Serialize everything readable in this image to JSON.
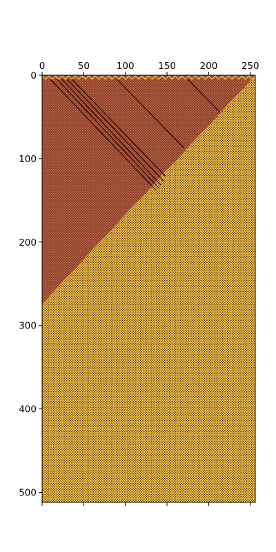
{
  "chart_data": {
    "type": "heatmap",
    "title": "",
    "xlabel": "",
    "ylabel": "",
    "x_axis_position": "top",
    "xlim": [
      0,
      256
    ],
    "ylim": [
      512,
      0
    ],
    "xticks": [
      0,
      50,
      100,
      150,
      200,
      250
    ],
    "xtick_labels": [
      "0",
      "50",
      "100",
      "150",
      "200",
      "250"
    ],
    "yticks": [
      0,
      100,
      200,
      300,
      400,
      500
    ],
    "ytick_labels": [
      "0",
      "100",
      "200",
      "300",
      "400",
      "500"
    ],
    "grid": false,
    "legend": "none",
    "colormap": "afmhot",
    "colors": {
      "light_region": "#f2c04d",
      "light_pattern_dark": "#2a0d00",
      "dark_region": "#8e3a2a",
      "dark_pattern_light": "#c07a50",
      "diagonal_line": "#1f0500"
    },
    "regions": [
      {
        "name": "dark-triangle",
        "shape": "triangle",
        "vertices": [
          [
            0,
            0
          ],
          [
            256,
            0
          ],
          [
            0,
            274
          ]
        ]
      },
      {
        "name": "light-region",
        "shape": "complement",
        "boundary": [
          [
            256,
            0
          ],
          [
            0,
            274
          ]
        ]
      }
    ],
    "diagonal_lines": [
      {
        "from": [
          10,
          5
        ],
        "to": [
          137,
          138
        ]
      },
      {
        "from": [
          18,
          5
        ],
        "to": [
          140,
          135
        ]
      },
      {
        "from": [
          24,
          5
        ],
        "to": [
          143,
          132
        ]
      },
      {
        "from": [
          30,
          5
        ],
        "to": [
          146,
          127
        ]
      },
      {
        "from": [
          36,
          5
        ],
        "to": [
          148,
          121
        ]
      },
      {
        "from": [
          90,
          5
        ],
        "to": [
          170,
          87
        ]
      },
      {
        "from": [
          175,
          5
        ],
        "to": [
          214,
          45
        ]
      }
    ]
  }
}
